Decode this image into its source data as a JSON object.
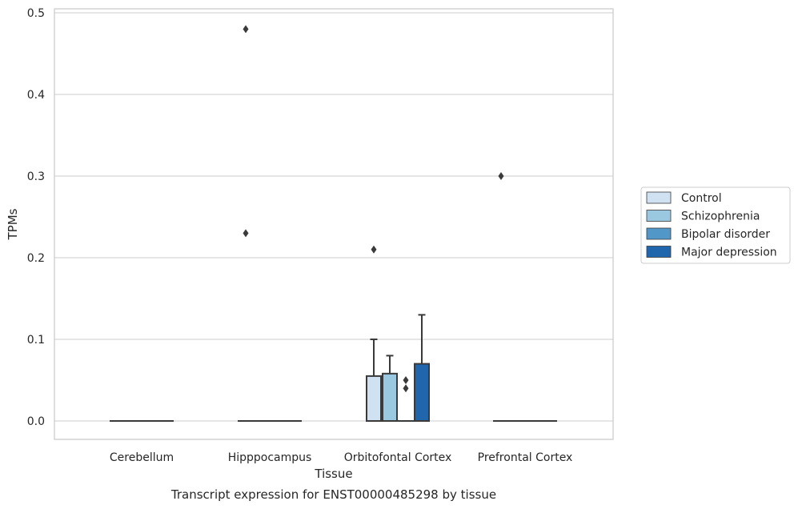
{
  "chart_data": {
    "type": "box",
    "caption": "Transcript expression for ENST00000485298 by tissue",
    "xlabel": "Tissue",
    "ylabel": "TPMs",
    "ylim": [
      -0.023,
      0.505
    ],
    "yticks": [
      "0.0",
      "0.1",
      "0.2",
      "0.3",
      "0.4",
      "0.5"
    ],
    "ytick_values": [
      0.0,
      0.1,
      0.2,
      0.3,
      0.4,
      0.5
    ],
    "grid": true,
    "legend_position": "right",
    "categories": [
      "Cerebellum",
      "Hipppocampus",
      "Orbitofontal Cortex",
      "Prefrontal Cortex"
    ],
    "series": [
      {
        "name": "Control",
        "color": "#d0e1f2",
        "boxes": [
          {
            "q1": 0,
            "median": 0,
            "q3": 0,
            "whisker_low": 0,
            "whisker_high": 0,
            "outliers": []
          },
          {
            "q1": 0,
            "median": 0,
            "q3": 0,
            "whisker_low": 0,
            "whisker_high": 0,
            "outliers": [
              0.48,
              0.23
            ]
          },
          {
            "q1": 0,
            "median": 0,
            "q3": 0.055,
            "whisker_low": 0,
            "whisker_high": 0.1,
            "outliers": [
              0.21
            ]
          },
          {
            "q1": 0,
            "median": 0,
            "q3": 0,
            "whisker_low": 0,
            "whisker_high": 0,
            "outliers": [
              0.3
            ]
          }
        ]
      },
      {
        "name": "Schizophrenia",
        "color": "#9ac8e0",
        "boxes": [
          {
            "q1": 0,
            "median": 0,
            "q3": 0,
            "whisker_low": 0,
            "whisker_high": 0,
            "outliers": []
          },
          {
            "q1": 0,
            "median": 0,
            "q3": 0,
            "whisker_low": 0,
            "whisker_high": 0,
            "outliers": []
          },
          {
            "q1": 0,
            "median": 0,
            "q3": 0.058,
            "whisker_low": 0,
            "whisker_high": 0.08,
            "outliers": []
          },
          {
            "q1": 0,
            "median": 0,
            "q3": 0,
            "whisker_low": 0,
            "whisker_high": 0,
            "outliers": []
          }
        ]
      },
      {
        "name": "Bipolar disorder",
        "color": "#5198c8",
        "boxes": [
          {
            "q1": 0,
            "median": 0,
            "q3": 0,
            "whisker_low": 0,
            "whisker_high": 0,
            "outliers": []
          },
          {
            "q1": 0,
            "median": 0,
            "q3": 0,
            "whisker_low": 0,
            "whisker_high": 0,
            "outliers": []
          },
          {
            "q1": 0,
            "median": 0,
            "q3": 0,
            "whisker_low": 0,
            "whisker_high": 0,
            "outliers": [
              0.05,
              0.04
            ]
          },
          {
            "q1": 0,
            "median": 0,
            "q3": 0,
            "whisker_low": 0,
            "whisker_high": 0,
            "outliers": []
          }
        ]
      },
      {
        "name": "Major depression",
        "color": "#2066ac",
        "boxes": [
          {
            "q1": 0,
            "median": 0,
            "q3": 0,
            "whisker_low": 0,
            "whisker_high": 0,
            "outliers": []
          },
          {
            "q1": 0,
            "median": 0,
            "q3": 0,
            "whisker_low": 0,
            "whisker_high": 0,
            "outliers": []
          },
          {
            "q1": 0,
            "median": 0,
            "q3": 0.07,
            "whisker_low": 0,
            "whisker_high": 0.13,
            "outliers": []
          },
          {
            "q1": 0,
            "median": 0,
            "q3": 0,
            "whisker_low": 0,
            "whisker_high": 0,
            "outliers": []
          }
        ]
      }
    ]
  }
}
